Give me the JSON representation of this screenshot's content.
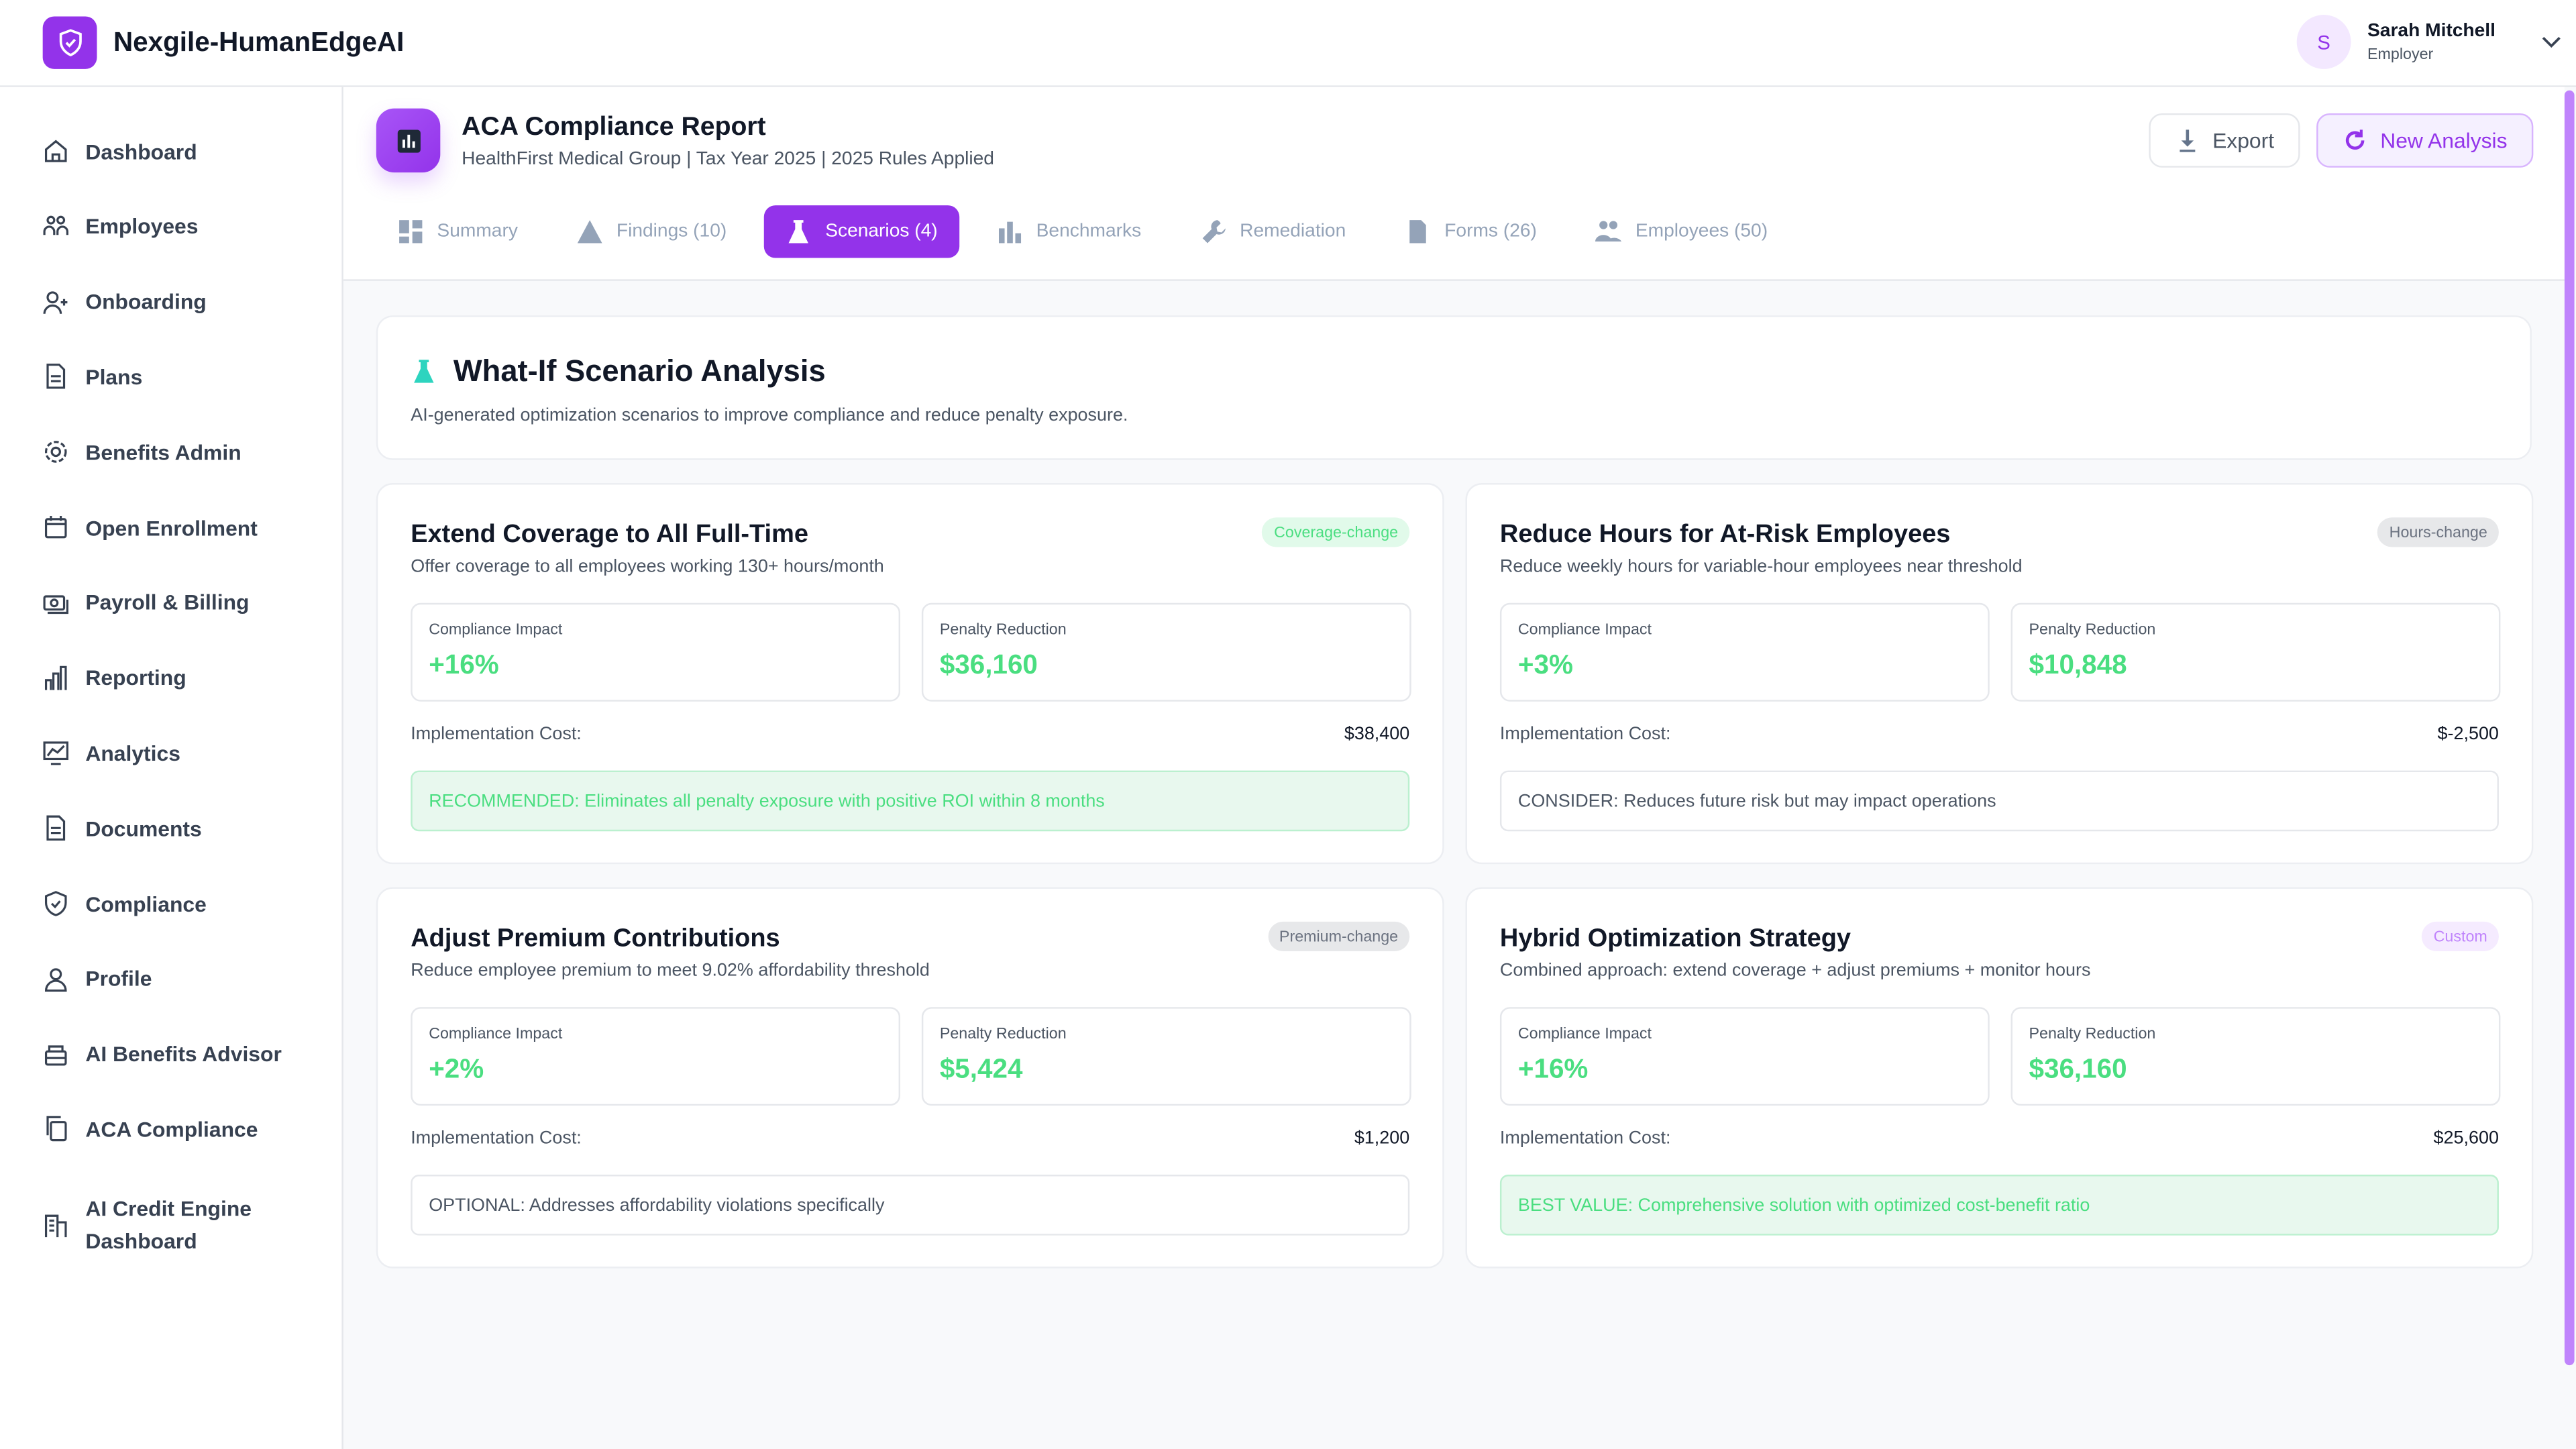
{
  "app": {
    "brand": "Nexgile-HumanEdgeAI"
  },
  "user": {
    "initial": "S",
    "name": "Sarah Mitchell",
    "role": "Employer"
  },
  "sidebar": {
    "items": [
      {
        "label": "Dashboard",
        "icon": "home-icon"
      },
      {
        "label": "Employees",
        "icon": "users-icon"
      },
      {
        "label": "Onboarding",
        "icon": "user-plus-icon"
      },
      {
        "label": "Plans",
        "icon": "document-icon"
      },
      {
        "label": "Benefits Admin",
        "icon": "gear-icon"
      },
      {
        "label": "Open Enrollment",
        "icon": "calendar-icon"
      },
      {
        "label": "Payroll & Billing",
        "icon": "money-icon"
      },
      {
        "label": "Reporting",
        "icon": "bar-chart-icon"
      },
      {
        "label": "Analytics",
        "icon": "trend-chart-icon"
      },
      {
        "label": "Documents",
        "icon": "document-icon"
      },
      {
        "label": "Compliance",
        "icon": "shield-check-icon"
      },
      {
        "label": "Profile",
        "icon": "person-icon"
      },
      {
        "label": "AI Benefits Advisor",
        "icon": "robot-icon"
      },
      {
        "label": "ACA Compliance",
        "icon": "copy-icon"
      },
      {
        "label": "AI Credit Engine",
        "label2": "Dashboard",
        "icon": "building-icon"
      }
    ]
  },
  "header": {
    "title": "ACA Compliance Report",
    "subtitle": "HealthFirst Medical Group | Tax Year 2025 | 2025 Rules Applied",
    "export": "Export",
    "new_analysis": "New Analysis"
  },
  "tabs": [
    {
      "label": "Summary",
      "icon": "dashboard-icon"
    },
    {
      "label": "Findings (10)",
      "icon": "warning-icon"
    },
    {
      "label": "Scenarios (4)",
      "icon": "flask-icon",
      "active": true
    },
    {
      "label": "Benchmarks",
      "icon": "bar-chart-icon"
    },
    {
      "label": "Remediation",
      "icon": "wrench-icon"
    },
    {
      "label": "Forms (26)",
      "icon": "document-icon"
    },
    {
      "label": "Employees (50)",
      "icon": "people-icon"
    }
  ],
  "intro": {
    "title": "What-If Scenario Analysis",
    "description": "AI-generated optimization scenarios to improve compliance and reduce penalty exposure."
  },
  "labels": {
    "compliance": "Compliance Impact",
    "penalty": "Penalty Reduction",
    "cost": "Implementation Cost:"
  },
  "scenarios": [
    {
      "title": "Extend Coverage to All Full-Time",
      "description": "Offer coverage to all employees working 130+ hours/month",
      "badge": "Coverage-change",
      "badge_color": "#4ade80",
      "compliance": "+16%",
      "penalty": "$36,160",
      "cost": "$38,400",
      "note": "RECOMMENDED: Eliminates all penalty exposure with positive ROI within 8 months",
      "note_style": "green"
    },
    {
      "title": "Reduce Hours for At-Risk Employees",
      "description": "Reduce weekly hours for variable-hour employees near threshold",
      "badge": "Hours-change",
      "badge_color": "#6b7280",
      "compliance": "+3%",
      "penalty": "$10,848",
      "cost": "$-2,500",
      "note": "CONSIDER: Reduces future risk but may impact operations",
      "note_style": "plain"
    },
    {
      "title": "Adjust Premium Contributions",
      "description": "Reduce employee premium to meet 9.02% affordability threshold",
      "badge": "Premium-change",
      "badge_color": "#6b7280",
      "compliance": "+2%",
      "penalty": "$5,424",
      "cost": "$1,200",
      "note": "OPTIONAL: Addresses affordability violations specifically",
      "note_style": "plain"
    },
    {
      "title": "Hybrid Optimization Strategy",
      "description": "Combined approach: extend coverage + adjust premiums + monitor hours",
      "badge": "Custom",
      "badge_color": "#c084fc",
      "compliance": "+16%",
      "penalty": "$36,160",
      "cost": "$25,600",
      "note": "BEST VALUE: Comprehensive solution with optimized cost-benefit ratio",
      "note_style": "green"
    }
  ],
  "colors": {
    "accent": "#9333ea",
    "positive": "#4ade80"
  }
}
